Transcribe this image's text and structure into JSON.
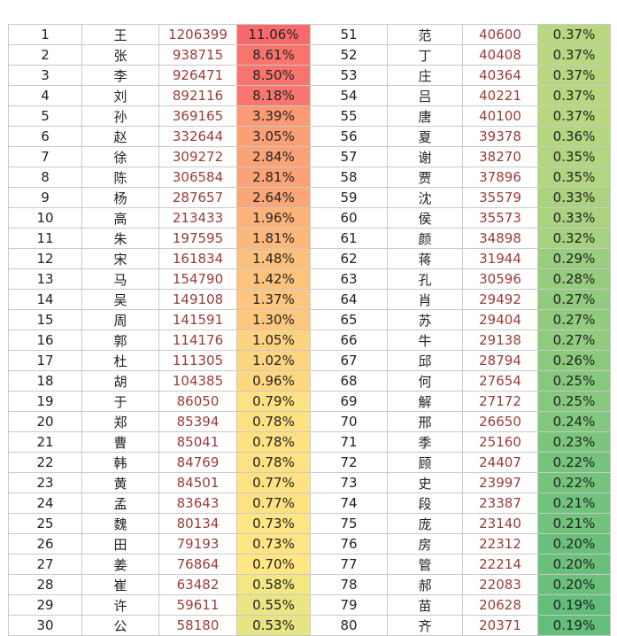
{
  "rows": [
    [
      {
        "rank": "1",
        "name": "王",
        "count": "1206399",
        "pct": "11.06%"
      },
      {
        "rank": "51",
        "name": "范",
        "count": "40600",
        "pct": "0.37%"
      }
    ],
    [
      {
        "rank": "2",
        "name": "张",
        "count": "938715",
        "pct": "8.61%"
      },
      {
        "rank": "52",
        "name": "丁",
        "count": "40408",
        "pct": "0.37%"
      }
    ],
    [
      {
        "rank": "3",
        "name": "李",
        "count": "926471",
        "pct": "8.50%"
      },
      {
        "rank": "53",
        "name": "庄",
        "count": "40364",
        "pct": "0.37%"
      }
    ],
    [
      {
        "rank": "4",
        "name": "刘",
        "count": "892116",
        "pct": "8.18%"
      },
      {
        "rank": "54",
        "name": "吕",
        "count": "40221",
        "pct": "0.37%"
      }
    ],
    [
      {
        "rank": "5",
        "name": "孙",
        "count": "369165",
        "pct": "3.39%"
      },
      {
        "rank": "55",
        "name": "唐",
        "count": "40100",
        "pct": "0.37%"
      }
    ],
    [
      {
        "rank": "6",
        "name": "赵",
        "count": "332644",
        "pct": "3.05%"
      },
      {
        "rank": "56",
        "name": "夏",
        "count": "39378",
        "pct": "0.36%"
      }
    ],
    [
      {
        "rank": "7",
        "name": "徐",
        "count": "309272",
        "pct": "2.84%"
      },
      {
        "rank": "57",
        "name": "谢",
        "count": "38270",
        "pct": "0.35%"
      }
    ],
    [
      {
        "rank": "8",
        "name": "陈",
        "count": "306584",
        "pct": "2.81%"
      },
      {
        "rank": "58",
        "name": "贾",
        "count": "37896",
        "pct": "0.35%"
      }
    ],
    [
      {
        "rank": "9",
        "name": "杨",
        "count": "287657",
        "pct": "2.64%"
      },
      {
        "rank": "59",
        "name": "沈",
        "count": "35579",
        "pct": "0.33%"
      }
    ],
    [
      {
        "rank": "10",
        "name": "高",
        "count": "213433",
        "pct": "1.96%"
      },
      {
        "rank": "60",
        "name": "侯",
        "count": "35573",
        "pct": "0.33%"
      }
    ],
    [
      {
        "rank": "11",
        "name": "朱",
        "count": "197595",
        "pct": "1.81%"
      },
      {
        "rank": "61",
        "name": "颜",
        "count": "34898",
        "pct": "0.32%"
      }
    ],
    [
      {
        "rank": "12",
        "name": "宋",
        "count": "161834",
        "pct": "1.48%"
      },
      {
        "rank": "62",
        "name": "蒋",
        "count": "31944",
        "pct": "0.29%"
      }
    ],
    [
      {
        "rank": "13",
        "name": "马",
        "count": "154790",
        "pct": "1.42%"
      },
      {
        "rank": "63",
        "name": "孔",
        "count": "30596",
        "pct": "0.28%"
      }
    ],
    [
      {
        "rank": "14",
        "name": "吴",
        "count": "149108",
        "pct": "1.37%"
      },
      {
        "rank": "64",
        "name": "肖",
        "count": "29492",
        "pct": "0.27%"
      }
    ],
    [
      {
        "rank": "15",
        "name": "周",
        "count": "141591",
        "pct": "1.30%"
      },
      {
        "rank": "65",
        "name": "苏",
        "count": "29404",
        "pct": "0.27%"
      }
    ],
    [
      {
        "rank": "16",
        "name": "郭",
        "count": "114176",
        "pct": "1.05%"
      },
      {
        "rank": "66",
        "name": "牛",
        "count": "29138",
        "pct": "0.27%"
      }
    ],
    [
      {
        "rank": "17",
        "name": "杜",
        "count": "111305",
        "pct": "1.02%"
      },
      {
        "rank": "67",
        "name": "邱",
        "count": "28794",
        "pct": "0.26%"
      }
    ],
    [
      {
        "rank": "18",
        "name": "胡",
        "count": "104385",
        "pct": "0.96%"
      },
      {
        "rank": "68",
        "name": "何",
        "count": "27654",
        "pct": "0.25%"
      }
    ],
    [
      {
        "rank": "19",
        "name": "于",
        "count": "86050",
        "pct": "0.79%"
      },
      {
        "rank": "69",
        "name": "解",
        "count": "27172",
        "pct": "0.25%"
      }
    ],
    [
      {
        "rank": "20",
        "name": "郑",
        "count": "85394",
        "pct": "0.78%"
      },
      {
        "rank": "70",
        "name": "邢",
        "count": "26650",
        "pct": "0.24%"
      }
    ],
    [
      {
        "rank": "21",
        "name": "曹",
        "count": "85041",
        "pct": "0.78%"
      },
      {
        "rank": "71",
        "name": "季",
        "count": "25160",
        "pct": "0.23%"
      }
    ],
    [
      {
        "rank": "22",
        "name": "韩",
        "count": "84769",
        "pct": "0.78%"
      },
      {
        "rank": "72",
        "name": "顾",
        "count": "24407",
        "pct": "0.22%"
      }
    ],
    [
      {
        "rank": "23",
        "name": "黄",
        "count": "84501",
        "pct": "0.77%"
      },
      {
        "rank": "73",
        "name": "史",
        "count": "23997",
        "pct": "0.22%"
      }
    ],
    [
      {
        "rank": "24",
        "name": "孟",
        "count": "83643",
        "pct": "0.77%"
      },
      {
        "rank": "74",
        "name": "段",
        "count": "23387",
        "pct": "0.21%"
      }
    ],
    [
      {
        "rank": "25",
        "name": "魏",
        "count": "80134",
        "pct": "0.73%"
      },
      {
        "rank": "75",
        "name": "庞",
        "count": "23140",
        "pct": "0.21%"
      }
    ],
    [
      {
        "rank": "26",
        "name": "田",
        "count": "79193",
        "pct": "0.73%"
      },
      {
        "rank": "76",
        "name": "房",
        "count": "22312",
        "pct": "0.20%"
      }
    ],
    [
      {
        "rank": "27",
        "name": "姜",
        "count": "76864",
        "pct": "0.70%"
      },
      {
        "rank": "77",
        "name": "管",
        "count": "22214",
        "pct": "0.20%"
      }
    ],
    [
      {
        "rank": "28",
        "name": "崔",
        "count": "63482",
        "pct": "0.58%"
      },
      {
        "rank": "78",
        "name": "郝",
        "count": "22083",
        "pct": "0.20%"
      }
    ],
    [
      {
        "rank": "29",
        "name": "许",
        "count": "59611",
        "pct": "0.55%"
      },
      {
        "rank": "79",
        "name": "苗",
        "count": "20628",
        "pct": "0.19%"
      }
    ],
    [
      {
        "rank": "30",
        "name": "公",
        "count": "58180",
        "pct": "0.53%"
      },
      {
        "rank": "80",
        "name": "齐",
        "count": "20371",
        "pct": "0.19%"
      }
    ]
  ],
  "colors": {
    "pct_red": "#f8696b",
    "pct_orange": "#fbae79",
    "pct_yellow": "#ffeb84",
    "pct_green": "#63be7b",
    "count_text": "#9b3b3b"
  }
}
